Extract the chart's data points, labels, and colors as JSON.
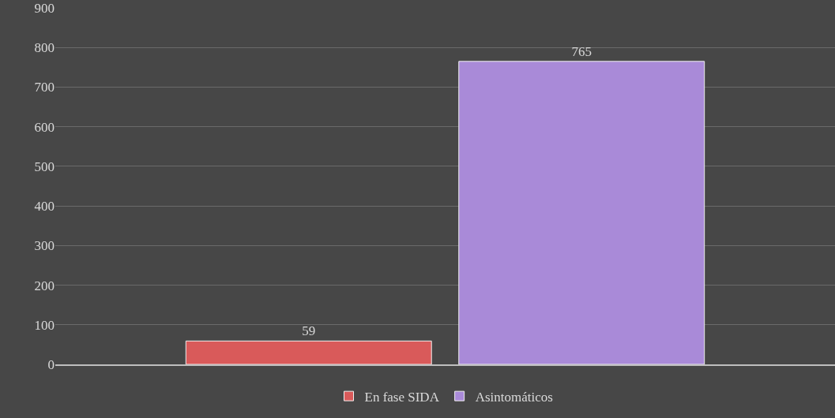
{
  "chart_data": {
    "type": "bar",
    "categories": [
      null
    ],
    "series": [
      {
        "name": "En fase SIDA",
        "color": "#d95a5a",
        "values": [
          59
        ]
      },
      {
        "name": "Asintomáticos",
        "color": "#a98ad8",
        "values": [
          765
        ]
      }
    ],
    "ylim": [
      0,
      900
    ],
    "yticks": [
      0,
      100,
      200,
      300,
      400,
      500,
      600,
      700,
      800,
      900
    ],
    "grid": "y",
    "legend": "bottom",
    "data_labels": true
  }
}
